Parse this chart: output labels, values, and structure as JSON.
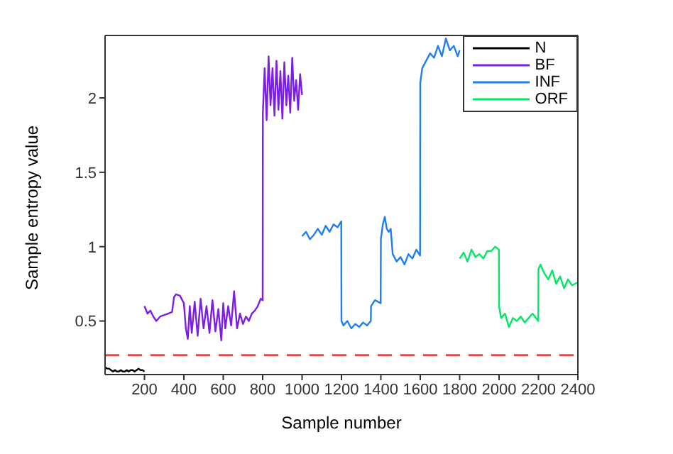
{
  "chart_data": {
    "type": "line",
    "xlabel": "Sample number",
    "ylabel": "Sample entropy value",
    "xlim": [
      0,
      2400
    ],
    "ylim": [
      0.14,
      2.42
    ],
    "xticks": [
      200,
      400,
      600,
      800,
      1000,
      1200,
      1400,
      1600,
      1800,
      2000,
      2200,
      2400
    ],
    "yticks": [
      0.5,
      1,
      1.5,
      2
    ],
    "legend": "top right",
    "grid": false,
    "marker": "none",
    "line_style": "solid",
    "ref_lines": [
      {
        "axis": "y",
        "value": 0.27,
        "color": "#ff3b3b",
        "line_style": "dashed"
      }
    ],
    "series": [
      {
        "name": "N",
        "color": "#000000",
        "x": [
          0,
          10,
          20,
          30,
          40,
          50,
          60,
          70,
          80,
          90,
          100,
          110,
          120,
          130,
          140,
          150,
          160,
          170,
          180,
          190,
          200
        ],
        "values": [
          0.19,
          0.18,
          0.18,
          0.17,
          0.16,
          0.17,
          0.16,
          0.16,
          0.17,
          0.16,
          0.16,
          0.17,
          0.16,
          0.17,
          0.17,
          0.16,
          0.17,
          0.18,
          0.17,
          0.17,
          0.16
        ]
      },
      {
        "name": "BF",
        "color": "#7b1fe8",
        "x": [
          200,
          215,
          230,
          245,
          260,
          280,
          300,
          320,
          340,
          350,
          360,
          380,
          400,
          410,
          420,
          430,
          440,
          455,
          470,
          485,
          500,
          515,
          530,
          545,
          560,
          575,
          590,
          600,
          610,
          625,
          640,
          655,
          670,
          685,
          700,
          715,
          730,
          745,
          760,
          775,
          790,
          800,
          801,
          810,
          820,
          830,
          840,
          850,
          860,
          870,
          880,
          890,
          900,
          910,
          920,
          930,
          940,
          950,
          960,
          970,
          980,
          990,
          1000
        ],
        "values": [
          0.6,
          0.55,
          0.57,
          0.53,
          0.5,
          0.53,
          0.54,
          0.55,
          0.56,
          0.66,
          0.68,
          0.67,
          0.62,
          0.45,
          0.38,
          0.6,
          0.42,
          0.63,
          0.4,
          0.65,
          0.45,
          0.6,
          0.42,
          0.64,
          0.43,
          0.58,
          0.37,
          0.62,
          0.45,
          0.6,
          0.47,
          0.7,
          0.45,
          0.55,
          0.48,
          0.53,
          0.5,
          0.55,
          0.57,
          0.6,
          0.65,
          0.64,
          1.9,
          2.2,
          1.85,
          2.28,
          1.95,
          2.2,
          1.88,
          2.25,
          1.92,
          2.18,
          1.86,
          2.24,
          1.95,
          2.15,
          1.9,
          2.27,
          1.98,
          2.12,
          1.92,
          2.16,
          2.02
        ]
      },
      {
        "name": "INF",
        "color": "#1f7ef0",
        "x": [
          1000,
          1020,
          1040,
          1060,
          1080,
          1100,
          1120,
          1140,
          1160,
          1180,
          1199,
          1200,
          1210,
          1230,
          1250,
          1270,
          1290,
          1310,
          1330,
          1349,
          1350,
          1370,
          1399,
          1400,
          1410,
          1420,
          1430,
          1440,
          1450,
          1460,
          1480,
          1500,
          1520,
          1540,
          1560,
          1580,
          1599,
          1600,
          1610,
          1630,
          1650,
          1670,
          1690,
          1710,
          1730,
          1750,
          1770,
          1790,
          1800
        ],
        "values": [
          1.07,
          1.1,
          1.05,
          1.08,
          1.12,
          1.08,
          1.14,
          1.1,
          1.15,
          1.13,
          1.17,
          0.5,
          0.47,
          0.5,
          0.45,
          0.48,
          0.46,
          0.49,
          0.47,
          0.5,
          0.6,
          0.64,
          0.62,
          1.05,
          1.15,
          1.2,
          1.12,
          1.1,
          1.12,
          0.95,
          0.9,
          0.93,
          0.88,
          0.95,
          0.92,
          0.98,
          0.94,
          2.1,
          2.2,
          2.25,
          2.3,
          2.27,
          2.35,
          2.28,
          2.4,
          2.32,
          2.35,
          2.28,
          2.32
        ]
      },
      {
        "name": "ORF",
        "color": "#00e864",
        "x": [
          1800,
          1820,
          1840,
          1860,
          1880,
          1900,
          1920,
          1940,
          1960,
          1980,
          1999,
          2000,
          2010,
          2030,
          2050,
          2070,
          2090,
          2110,
          2130,
          2150,
          2170,
          2199,
          2200,
          2210,
          2230,
          2250,
          2270,
          2290,
          2310,
          2330,
          2350,
          2370,
          2400
        ],
        "values": [
          0.92,
          0.96,
          0.9,
          0.98,
          0.93,
          0.95,
          0.92,
          0.97,
          0.97,
          1.0,
          0.98,
          0.6,
          0.52,
          0.55,
          0.46,
          0.52,
          0.5,
          0.53,
          0.49,
          0.52,
          0.55,
          0.5,
          0.85,
          0.88,
          0.82,
          0.78,
          0.84,
          0.75,
          0.8,
          0.72,
          0.78,
          0.74,
          0.76
        ]
      }
    ]
  }
}
